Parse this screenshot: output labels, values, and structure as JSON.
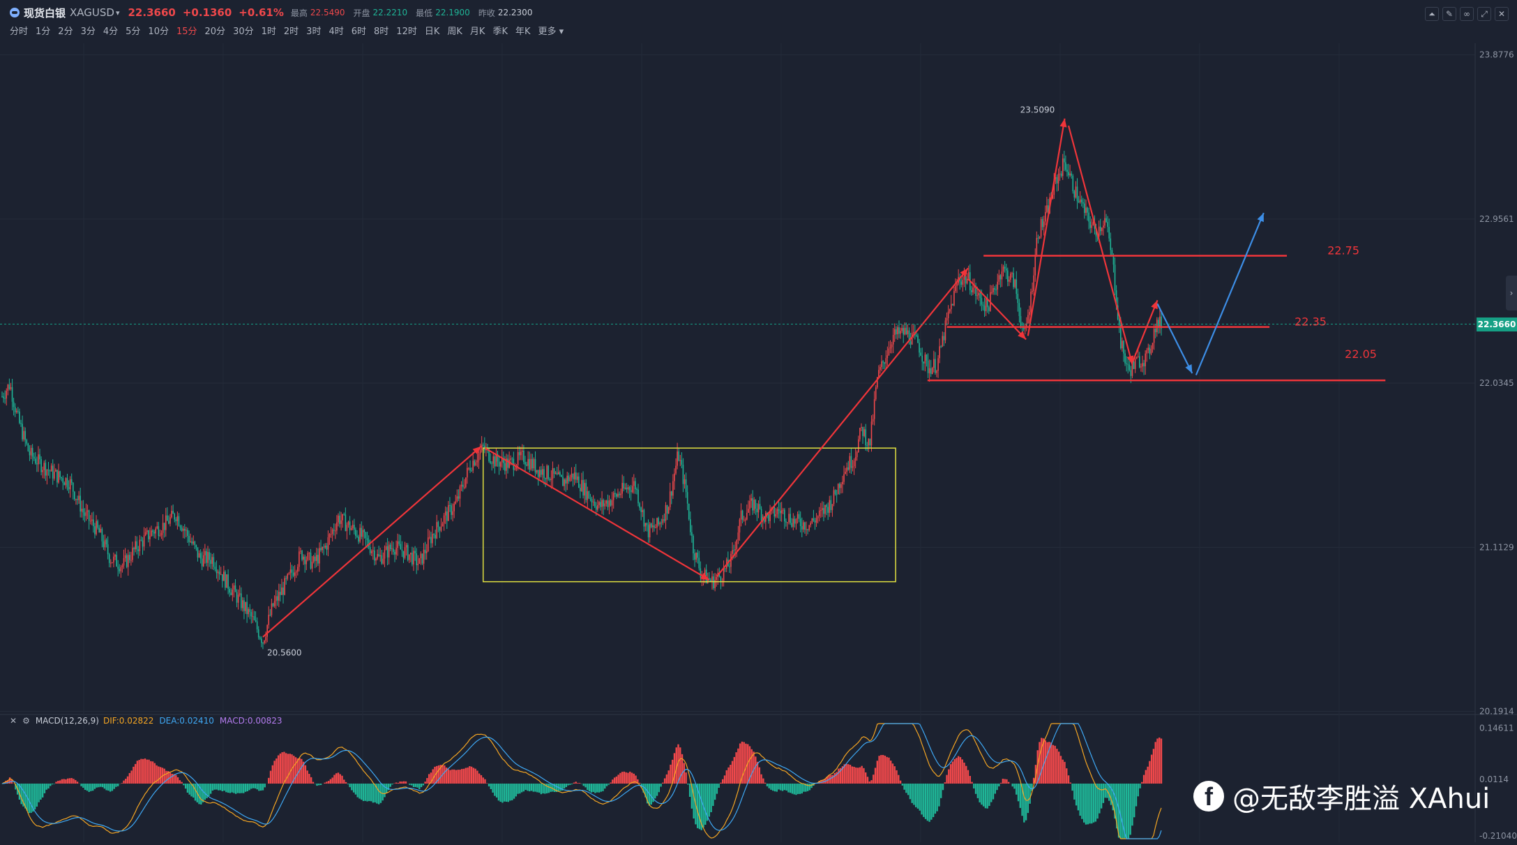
{
  "header": {
    "symbol_name": "现货白银",
    "symbol_code": "XAGUSD",
    "last_price": "22.3660",
    "change": "+0.1360",
    "change_pct": "+0.61%",
    "high_label": "最高",
    "high": "22.5490",
    "open_label": "开盘",
    "open": "22.2210",
    "low_label": "最低",
    "low": "22.1900",
    "prev_close_label": "昨收",
    "prev_close": "22.2300"
  },
  "periods": [
    "分时",
    "1分",
    "2分",
    "3分",
    "4分",
    "5分",
    "10分",
    "15分",
    "20分",
    "30分",
    "1时",
    "2时",
    "3时",
    "4时",
    "6时",
    "8时",
    "12时",
    "日K",
    "周K",
    "月K",
    "季K",
    "年K",
    "更多"
  ],
  "active_period": "15分",
  "toolbar_icons": [
    "draw-icon",
    "edit-icon",
    "link-icon",
    "fullscreen-icon",
    "close-icon"
  ],
  "colors": {
    "background": "#1c2230",
    "up": "#f0484b",
    "down": "#1fb597",
    "annotation_red": "#f0353a",
    "annotation_blue": "#3d8ee6",
    "range_box": "#e0e040",
    "dif": "#f5a623",
    "dea": "#3fa9f5"
  },
  "chart_data": {
    "type": "candlestick",
    "symbol": "XAGUSD",
    "timeframe": "15分",
    "y_axis_ticks": [
      "23.8776",
      "22.9561",
      "22.0345",
      "21.1129",
      "20.1914"
    ],
    "ylim": [
      20.19,
      23.88
    ],
    "last_price": 22.366,
    "labels": {
      "high_marker": "23.5090",
      "low_marker": "20.5600"
    },
    "price_path": [
      [
        0,
        21.96
      ],
      [
        8,
        22.03
      ],
      [
        16,
        21.84
      ],
      [
        28,
        21.64
      ],
      [
        40,
        21.58
      ],
      [
        55,
        21.52
      ],
      [
        70,
        21.48
      ],
      [
        85,
        21.3
      ],
      [
        100,
        21.2
      ],
      [
        112,
        21.05
      ],
      [
        125,
        21.01
      ],
      [
        140,
        21.12
      ],
      [
        155,
        21.2
      ],
      [
        168,
        21.24
      ],
      [
        180,
        21.3
      ],
      [
        192,
        21.18
      ],
      [
        205,
        21.05
      ],
      [
        218,
        21.05
      ],
      [
        232,
        20.92
      ],
      [
        245,
        20.82
      ],
      [
        258,
        20.72
      ],
      [
        270,
        20.59
      ],
      [
        280,
        20.78
      ],
      [
        295,
        20.92
      ],
      [
        310,
        21.08
      ],
      [
        322,
        21.02
      ],
      [
        335,
        21.12
      ],
      [
        348,
        21.28
      ],
      [
        362,
        21.22
      ],
      [
        375,
        21.16
      ],
      [
        390,
        21.05
      ],
      [
        405,
        21.12
      ],
      [
        420,
        21.08
      ],
      [
        432,
        21.02
      ],
      [
        445,
        21.18
      ],
      [
        458,
        21.28
      ],
      [
        470,
        21.36
      ],
      [
        485,
        21.58
      ],
      [
        498,
        21.67
      ],
      [
        510,
        21.6
      ],
      [
        525,
        21.58
      ],
      [
        540,
        21.62
      ],
      [
        555,
        21.55
      ],
      [
        568,
        21.52
      ],
      [
        580,
        21.48
      ],
      [
        592,
        21.52
      ],
      [
        605,
        21.42
      ],
      [
        618,
        21.34
      ],
      [
        630,
        21.38
      ],
      [
        642,
        21.43
      ],
      [
        655,
        21.47
      ],
      [
        668,
        21.2
      ],
      [
        680,
        21.24
      ],
      [
        690,
        21.36
      ],
      [
        700,
        21.64
      ],
      [
        708,
        21.42
      ],
      [
        715,
        21.12
      ],
      [
        724,
        20.96
      ],
      [
        735,
        20.92
      ],
      [
        745,
        20.96
      ],
      [
        755,
        21.04
      ],
      [
        765,
        21.28
      ],
      [
        778,
        21.36
      ],
      [
        790,
        21.28
      ],
      [
        805,
        21.32
      ],
      [
        820,
        21.26
      ],
      [
        835,
        21.24
      ],
      [
        848,
        21.3
      ],
      [
        860,
        21.38
      ],
      [
        872,
        21.55
      ],
      [
        882,
        21.62
      ],
      [
        890,
        21.78
      ],
      [
        898,
        21.68
      ],
      [
        906,
        22.06
      ],
      [
        914,
        22.18
      ],
      [
        922,
        22.3
      ],
      [
        935,
        22.32
      ],
      [
        948,
        22.26
      ],
      [
        958,
        22.12
      ],
      [
        968,
        22.14
      ],
      [
        978,
        22.38
      ],
      [
        990,
        22.62
      ],
      [
        1000,
        22.62
      ],
      [
        1010,
        22.52
      ],
      [
        1020,
        22.46
      ],
      [
        1035,
        22.68
      ],
      [
        1048,
        22.6
      ],
      [
        1058,
        22.28
      ],
      [
        1065,
        22.52
      ],
      [
        1072,
        22.88
      ],
      [
        1080,
        22.96
      ],
      [
        1090,
        23.16
      ],
      [
        1100,
        23.28
      ],
      [
        1110,
        23.12
      ],
      [
        1122,
        22.98
      ],
      [
        1132,
        22.88
      ],
      [
        1142,
        22.96
      ],
      [
        1150,
        22.7
      ],
      [
        1158,
        22.26
      ],
      [
        1166,
        22.1
      ],
      [
        1176,
        22.16
      ],
      [
        1186,
        22.18
      ],
      [
        1194,
        22.36
      ],
      [
        1200,
        22.37
      ]
    ],
    "annotations": {
      "levels": [
        {
          "label": "22.75",
          "price": 22.75
        },
        {
          "label": "22.35",
          "price": 22.35
        },
        {
          "label": "22.05",
          "price": 22.05
        }
      ],
      "range_box": {
        "price_top": 21.67,
        "price_bottom": 20.92
      },
      "red_arrows": "historical swing path",
      "blue_arrows": "projected path: down toward 22.05 then up above 22.75"
    }
  },
  "macd": {
    "title": "MACD(12,26,9)",
    "dif": "DIF:0.02822",
    "dea": "DEA:0.02410",
    "macd": "MACD:0.00823",
    "y_axis_ticks": [
      "0.14611",
      "0.0114",
      "-0.21040"
    ]
  },
  "price_tag": "22.3660",
  "watermark": "@无敌李胜溢 XAhui"
}
